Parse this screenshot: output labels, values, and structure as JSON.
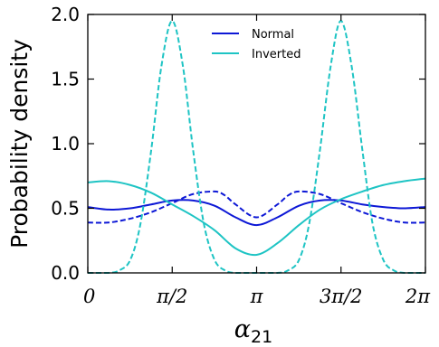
{
  "chart_data": {
    "type": "line",
    "title": "",
    "xlabel": "α21",
    "xlabel_main": "α",
    "xlabel_sub": "21",
    "ylabel": "Probability density",
    "xlim": [
      0,
      6.2832
    ],
    "ylim": [
      0,
      2.0
    ],
    "x_ticks": [
      {
        "value": 0,
        "label": "0"
      },
      {
        "value": 1.5708,
        "label": "π/2"
      },
      {
        "value": 3.1416,
        "label": "π"
      },
      {
        "value": 4.7124,
        "label": "3π/2"
      },
      {
        "value": 6.2832,
        "label": "2π"
      }
    ],
    "y_ticks": [
      {
        "value": 0.0,
        "label": "0.0"
      },
      {
        "value": 0.5,
        "label": "0.5"
      },
      {
        "value": 1.0,
        "label": "1.0"
      },
      {
        "value": 1.5,
        "label": "1.5"
      },
      {
        "value": 2.0,
        "label": "2.0"
      }
    ],
    "grid": false,
    "legend_position": "top-center",
    "legend": [
      {
        "label": "Normal",
        "color": "#0d18d6"
      },
      {
        "label": "Inverted",
        "color": "#1ec4c4"
      }
    ],
    "series": [
      {
        "hierarchy": "Normal",
        "style": "solid",
        "color": "#0d18d6",
        "x": [
          0,
          0.39,
          0.79,
          1.18,
          1.57,
          1.96,
          2.36,
          2.75,
          3.14,
          3.53,
          3.93,
          4.32,
          4.71,
          5.11,
          5.5,
          5.89,
          6.28
        ],
        "y": [
          0.51,
          0.49,
          0.5,
          0.53,
          0.56,
          0.56,
          0.52,
          0.43,
          0.37,
          0.43,
          0.52,
          0.56,
          0.56,
          0.53,
          0.51,
          0.5,
          0.51
        ]
      },
      {
        "hierarchy": "Normal",
        "style": "dashed",
        "color": "#0d18d6",
        "x": [
          0,
          0.39,
          0.79,
          1.18,
          1.57,
          1.96,
          2.36,
          2.55,
          2.75,
          3.14,
          3.53,
          3.73,
          3.93,
          4.32,
          4.71,
          5.11,
          5.5,
          5.89,
          6.28
        ],
        "y": [
          0.39,
          0.39,
          0.42,
          0.47,
          0.54,
          0.61,
          0.63,
          0.6,
          0.53,
          0.43,
          0.53,
          0.6,
          0.63,
          0.61,
          0.54,
          0.47,
          0.42,
          0.39,
          0.39
        ]
      },
      {
        "hierarchy": "Inverted",
        "style": "solid",
        "color": "#1ec4c4",
        "x": [
          0,
          0.39,
          0.79,
          1.18,
          1.57,
          1.96,
          2.36,
          2.75,
          3.14,
          3.53,
          3.93,
          4.32,
          4.71,
          5.11,
          5.5,
          5.89,
          6.28
        ],
        "y": [
          0.7,
          0.71,
          0.68,
          0.62,
          0.53,
          0.44,
          0.33,
          0.19,
          0.14,
          0.23,
          0.37,
          0.49,
          0.57,
          0.63,
          0.68,
          0.71,
          0.73
        ]
      },
      {
        "hierarchy": "Inverted",
        "style": "dashed",
        "color": "#1ec4c4",
        "x": [
          0,
          0.39,
          0.59,
          0.79,
          0.98,
          1.18,
          1.37,
          1.57,
          1.77,
          1.96,
          2.16,
          2.36,
          2.55,
          2.75,
          3.14,
          3.53,
          3.73,
          3.93,
          4.12,
          4.32,
          4.52,
          4.71,
          4.91,
          5.11,
          5.3,
          5.5,
          5.69,
          5.89,
          6.28
        ],
        "y": [
          0.0,
          0.0,
          0.02,
          0.1,
          0.38,
          0.95,
          1.6,
          1.95,
          1.6,
          0.95,
          0.38,
          0.1,
          0.02,
          0.0,
          0.0,
          0.0,
          0.02,
          0.1,
          0.38,
          0.95,
          1.6,
          1.95,
          1.6,
          0.95,
          0.38,
          0.1,
          0.02,
          0.0,
          0.0
        ]
      }
    ]
  }
}
